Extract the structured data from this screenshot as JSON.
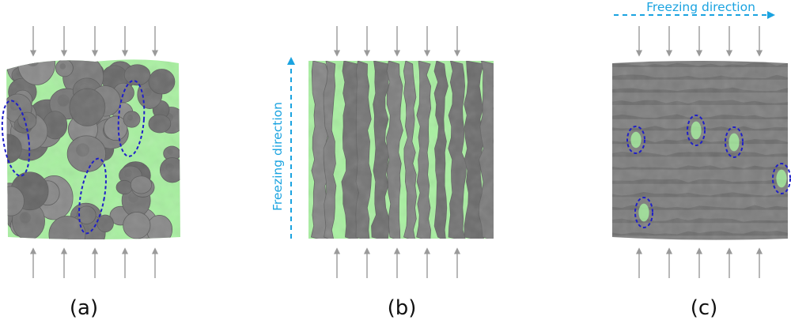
{
  "panels": [
    {
      "label": "(a)",
      "freezing_direction": ""
    },
    {
      "label": "(b)",
      "freezing_direction": "Freezing direction"
    },
    {
      "label": "(c)",
      "freezing_direction": "Freezing direction"
    }
  ],
  "colors": {
    "background": "#ffffff",
    "solid_gray": "#7b7b7b",
    "pore_green": "#a8f0a0",
    "loading_arrow": "#9a9a9a",
    "freezing_arrow": "#1aa3e0",
    "highlight_ellipse": "#1f1fc8"
  },
  "icons": {
    "loading_arrow": "gray-arrow-icon",
    "freezing_arrow": "dashed-blue-arrow-icon",
    "highlight": "dashed-ellipse-highlight"
  }
}
